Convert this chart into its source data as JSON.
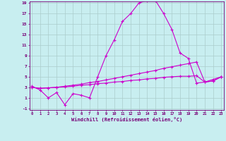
{
  "bg_color": "#c8eef0",
  "grid_color": "#aacccc",
  "line_color": "#cc00cc",
  "xlim_min": 0,
  "xlim_max": 23,
  "ylim_min": -1,
  "ylim_max": 19,
  "xticks": [
    0,
    1,
    2,
    3,
    4,
    5,
    6,
    7,
    8,
    9,
    10,
    11,
    12,
    13,
    14,
    15,
    16,
    17,
    18,
    19,
    20,
    21,
    22,
    23
  ],
  "yticks": [
    -1,
    1,
    3,
    5,
    7,
    9,
    11,
    13,
    15,
    17,
    19
  ],
  "xlabel": "Windchill (Refroidissement éolien,°C)",
  "line1_x": [
    0,
    1,
    2,
    3,
    4,
    5,
    6,
    7,
    8,
    9,
    10,
    11,
    12,
    13,
    14,
    15,
    16,
    17,
    18,
    19,
    20,
    21,
    22,
    23
  ],
  "line1_y": [
    3.0,
    2.8,
    2.9,
    3.0,
    3.1,
    3.2,
    3.4,
    3.5,
    3.7,
    3.8,
    4.0,
    4.1,
    4.3,
    4.4,
    4.6,
    4.7,
    4.9,
    5.0,
    5.1,
    5.1,
    5.2,
    4.0,
    4.2,
    5.0
  ],
  "line2_x": [
    0,
    1,
    2,
    3,
    4,
    5,
    6,
    7,
    8,
    9,
    10,
    11,
    12,
    13,
    14,
    15,
    16,
    17,
    18,
    19,
    20,
    21,
    22,
    23
  ],
  "line2_y": [
    3.0,
    2.8,
    2.9,
    3.0,
    3.2,
    3.4,
    3.6,
    3.9,
    4.1,
    4.4,
    4.7,
    5.0,
    5.3,
    5.6,
    5.9,
    6.2,
    6.6,
    6.9,
    7.2,
    7.5,
    7.8,
    4.0,
    4.2,
    5.0
  ],
  "line3_x": [
    0,
    1,
    2,
    3,
    4,
    5,
    6,
    7,
    8,
    9,
    10,
    11,
    12,
    13,
    14,
    15,
    16,
    17,
    18,
    19,
    20,
    21,
    22,
    23
  ],
  "line3_y": [
    3.2,
    2.5,
    1.0,
    2.0,
    -0.3,
    1.8,
    1.5,
    1.0,
    5.0,
    9.0,
    12.0,
    15.5,
    17.0,
    19.0,
    19.5,
    19.5,
    17.0,
    14.0,
    9.5,
    8.5,
    3.8,
    4.0,
    4.5,
    5.0
  ]
}
